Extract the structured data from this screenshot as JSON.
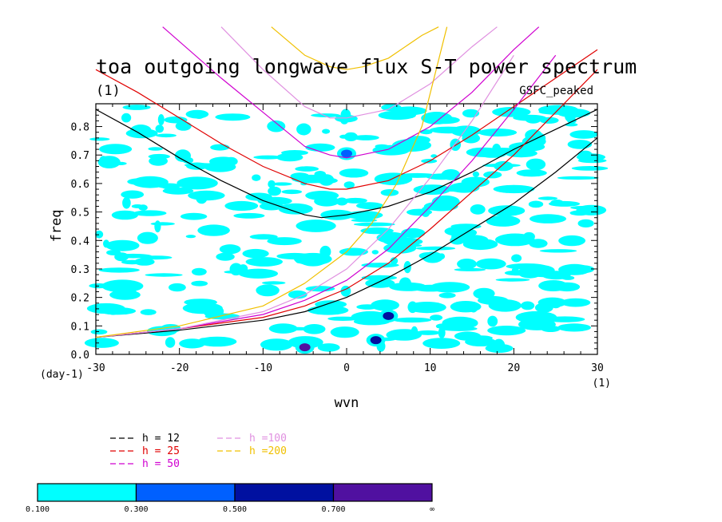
{
  "chart_data": {
    "type": "contour",
    "title": "toa outgoing longwave flux S-T power spectrum",
    "subtitle_left": "(1)",
    "subtitle_right": "GSFC_peaked",
    "xlabel": "wvn",
    "ylabel": "freq",
    "x_unit": "(1)",
    "y_unit": "(day-1)",
    "xlim": [
      -30,
      30
    ],
    "ylim": [
      0,
      0.88
    ],
    "x_ticks": [
      -30,
      -20,
      -10,
      0,
      10,
      20,
      30
    ],
    "x_tick_labels": [
      "-30",
      "-20",
      "-10",
      "0",
      "10",
      "20",
      "30"
    ],
    "y_ticks": [
      0,
      0.1,
      0.2,
      0.3,
      0.4,
      0.5,
      0.6,
      0.7,
      0.8
    ],
    "y_tick_labels": [
      "0.0",
      "0.1",
      "0.2",
      "0.3",
      "0.4",
      "0.5",
      "0.6",
      "0.7",
      "0.8"
    ],
    "dispersion_curves": [
      {
        "name": "h = 12",
        "color": "#000000",
        "ig_x": [
          -30,
          -25,
          -20,
          -15,
          -10,
          -5,
          -3,
          0,
          5,
          10,
          15,
          20,
          25,
          30
        ],
        "ig_y": [
          0.86,
          0.78,
          0.69,
          0.61,
          0.54,
          0.49,
          0.48,
          0.49,
          0.52,
          0.57,
          0.64,
          0.72,
          0.79,
          0.86
        ],
        "kelvin_x": [
          -30,
          -20,
          -10,
          -5,
          0,
          5,
          10,
          15,
          20,
          25,
          30
        ],
        "kelvin_y": [
          0.06,
          0.085,
          0.12,
          0.15,
          0.2,
          0.27,
          0.35,
          0.44,
          0.53,
          0.64,
          0.76
        ]
      },
      {
        "name": "h = 25",
        "color": "#e00000",
        "ig_x": [
          -30,
          -25,
          -20,
          -15,
          -10,
          -5,
          -2,
          0,
          5,
          10,
          15,
          20,
          25,
          30
        ],
        "ig_y": [
          1.0,
          0.92,
          0.83,
          0.74,
          0.66,
          0.6,
          0.58,
          0.58,
          0.61,
          0.68,
          0.77,
          0.87,
          0.97,
          1.07
        ],
        "kelvin_x": [
          -30,
          -20,
          -10,
          -5,
          0,
          5,
          10,
          15,
          20,
          25,
          30
        ],
        "kelvin_y": [
          0.06,
          0.09,
          0.13,
          0.17,
          0.23,
          0.32,
          0.44,
          0.57,
          0.7,
          0.85,
          1.0
        ]
      },
      {
        "name": "h = 50",
        "color": "#d000d0",
        "ig_x": [
          -22,
          -15,
          -10,
          -5,
          -2,
          0,
          5,
          10,
          15,
          20,
          23
        ],
        "ig_y": [
          1.15,
          0.97,
          0.85,
          0.73,
          0.7,
          0.69,
          0.72,
          0.8,
          0.92,
          1.07,
          1.15
        ],
        "kelvin_x": [
          -30,
          -20,
          -10,
          -5,
          0,
          5,
          10,
          15,
          20,
          25
        ],
        "kelvin_y": [
          0.06,
          0.09,
          0.14,
          0.19,
          0.26,
          0.37,
          0.52,
          0.68,
          0.86,
          1.05
        ]
      },
      {
        "name": "h =100",
        "color": "#e090e0",
        "ig_x": [
          -15,
          -10,
          -5,
          -2,
          0,
          5,
          10,
          15,
          18
        ],
        "ig_y": [
          1.15,
          1.0,
          0.87,
          0.83,
          0.83,
          0.86,
          0.95,
          1.08,
          1.15
        ],
        "kelvin_x": [
          -30,
          -20,
          -10,
          -5,
          0,
          5,
          10,
          15,
          20
        ],
        "kelvin_y": [
          0.06,
          0.09,
          0.15,
          0.21,
          0.3,
          0.44,
          0.62,
          0.82,
          1.05
        ]
      },
      {
        "name": "h =200",
        "color": "#f0c000",
        "ig_x": [
          -9,
          -5,
          -2,
          0,
          2,
          5,
          9,
          11
        ],
        "ig_y": [
          1.15,
          1.05,
          1.01,
          1.0,
          1.01,
          1.04,
          1.12,
          1.15
        ],
        "kelvin_x": [
          -30,
          -20,
          -10,
          -5,
          0,
          3,
          6,
          9,
          12
        ],
        "kelvin_y": [
          0.06,
          0.1,
          0.17,
          0.25,
          0.36,
          0.46,
          0.6,
          0.8,
          1.15
        ]
      }
    ],
    "contour_levels": [
      {
        "range": "0.100-0.300",
        "color": "#00ffff"
      },
      {
        "range": "0.300-0.500",
        "color": "#0060ff"
      },
      {
        "range": "0.500-0.700",
        "color": "#0010a0"
      },
      {
        "range": "0.700-∞",
        "color": "#5010a0"
      }
    ],
    "colorbar_labels": [
      "0.100",
      "0.300",
      "0.500",
      "0.700",
      "∞"
    ],
    "peaks": [
      {
        "x": -5,
        "y": 0.025,
        "level": "0.700-∞"
      },
      {
        "x": 5,
        "y": 0.135,
        "level": "0.500-0.700"
      },
      {
        "x": 3.5,
        "y": 0.05,
        "level": "0.500-0.700"
      },
      {
        "x": 0,
        "y": 0.705,
        "level": "0.300-0.500"
      }
    ]
  }
}
